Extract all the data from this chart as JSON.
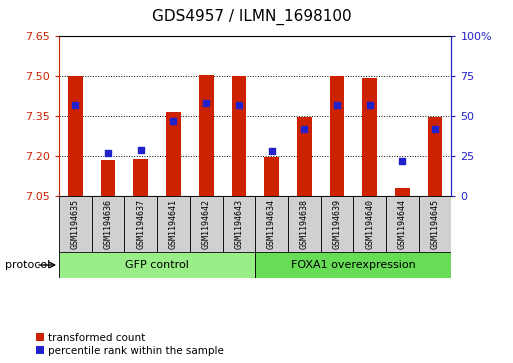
{
  "title": "GDS4957 / ILMN_1698100",
  "samples": [
    "GSM1194635",
    "GSM1194636",
    "GSM1194637",
    "GSM1194641",
    "GSM1194642",
    "GSM1194643",
    "GSM1194634",
    "GSM1194638",
    "GSM1194639",
    "GSM1194640",
    "GSM1194644",
    "GSM1194645"
  ],
  "transformed_count": [
    7.5,
    7.185,
    7.19,
    7.365,
    7.505,
    7.5,
    7.195,
    7.345,
    7.5,
    7.495,
    7.08,
    7.345
  ],
  "percentile_rank": [
    57,
    27,
    29,
    47,
    58,
    57,
    28,
    42,
    57,
    57,
    22,
    42
  ],
  "ylim": [
    7.05,
    7.65
  ],
  "yticks": [
    7.05,
    7.2,
    7.35,
    7.5,
    7.65
  ],
  "y2lim": [
    0,
    100
  ],
  "y2ticks": [
    0,
    25,
    50,
    75,
    100
  ],
  "y2labels": [
    "0",
    "25",
    "50",
    "75",
    "100%"
  ],
  "bar_color": "#cc2200",
  "dot_color": "#2222cc",
  "bar_width": 0.45,
  "dot_size": 22,
  "groups": [
    {
      "label": "GFP control",
      "start": 0,
      "end": 5,
      "color": "#99ee88"
    },
    {
      "label": "FOXA1 overexpression",
      "start": 6,
      "end": 11,
      "color": "#66dd55"
    }
  ],
  "protocol_label": "protocol",
  "legend_items": [
    {
      "label": "transformed count",
      "color": "#cc2200"
    },
    {
      "label": "percentile rank within the sample",
      "color": "#2222cc"
    }
  ],
  "ycolor": "#cc2200",
  "y2color": "#2222cc",
  "grid_color": "#000000",
  "bg_color": "#ffffff",
  "plot_bg": "#ffffff",
  "title_fontsize": 11,
  "tick_fontsize": 8,
  "label_fontsize": 7
}
